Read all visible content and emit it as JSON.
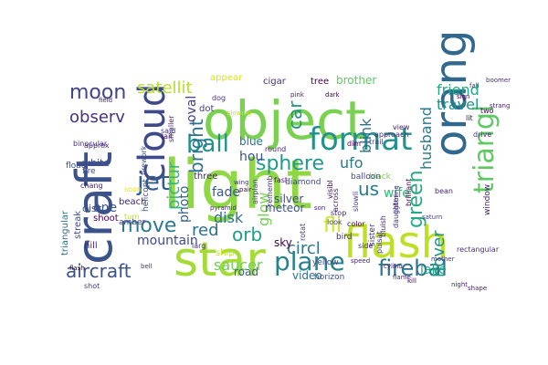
{
  "words": [
    {
      "text": "object",
      "color": "#7ad151"
    },
    {
      "text": "light",
      "color": "#8fd744"
    },
    {
      "text": "craft",
      "color": "#3b528b"
    },
    {
      "text": "flash",
      "color": "#bddf26"
    },
    {
      "text": "star",
      "color": "#a5db36"
    },
    {
      "text": "orang",
      "color": "#31688e"
    },
    {
      "text": "cloud",
      "color": "#3e4989"
    },
    {
      "text": "format",
      "color": "#21918c"
    },
    {
      "text": "plane",
      "color": "#26828e"
    },
    {
      "text": "triangl",
      "color": "#5ec962"
    },
    {
      "text": "firebal",
      "color": "#2c728e"
    },
    {
      "text": "green",
      "color": "#25ab82"
    },
    {
      "text": "ball",
      "color": "#21918c"
    },
    {
      "text": "move",
      "color": "#2a788e"
    },
    {
      "text": "sphere",
      "color": "#1e9b8a"
    },
    {
      "text": "moon",
      "color": "#414487"
    },
    {
      "text": "satellit",
      "color": "#b5de2b"
    },
    {
      "text": "bright",
      "color": "#2c728e"
    },
    {
      "text": "car",
      "color": "#21918c"
    },
    {
      "text": "jet",
      "color": "#365c8d"
    },
    {
      "text": "observ",
      "color": "#46337e"
    },
    {
      "text": "friend",
      "color": "#22a884"
    },
    {
      "text": "travel",
      "color": "#21918c"
    },
    {
      "text": "pictur",
      "color": "#35b779"
    },
    {
      "text": "husband",
      "color": "#2a788e"
    },
    {
      "text": "aircraft",
      "color": "#3b528b"
    },
    {
      "text": "hover",
      "color": "#21918c"
    },
    {
      "text": "orb",
      "color": "#1f9e89"
    },
    {
      "text": "circl",
      "color": "#2a788e"
    },
    {
      "text": "fli",
      "color": "#d2e21b"
    },
    {
      "text": "us",
      "color": "#2a788e"
    },
    {
      "text": "wife",
      "color": "#35b779"
    },
    {
      "text": "mountain",
      "color": "#3e4989"
    },
    {
      "text": "red",
      "color": "#2c728e"
    },
    {
      "text": "disk",
      "color": "#2c728e"
    },
    {
      "text": "ufo",
      "color": "#2a788e"
    },
    {
      "text": "blink",
      "color": "#2c728e"
    },
    {
      "text": "hou",
      "color": "#3b528b"
    },
    {
      "text": "glow",
      "color": "#75d054"
    },
    {
      "text": "photo",
      "color": "#355f8d"
    },
    {
      "text": "fade",
      "color": "#38588c"
    },
    {
      "text": "saucer",
      "color": "#6ece58"
    },
    {
      "text": "lake",
      "color": "#22a884"
    },
    {
      "text": "road",
      "color": "#355f8d"
    },
    {
      "text": "one",
      "color": "#3b528b"
    },
    {
      "text": "blue",
      "color": "#2c728e"
    },
    {
      "text": "oval",
      "color": "#433e85"
    },
    {
      "text": "brother",
      "color": "#5ec962"
    },
    {
      "text": "tree",
      "color": "#440154"
    },
    {
      "text": "cigar",
      "color": "#482878"
    },
    {
      "text": "appear",
      "color": "#d8e219"
    },
    {
      "text": "dot",
      "color": "#443983"
    },
    {
      "text": "video",
      "color": "#2c728e"
    },
    {
      "text": "sky",
      "color": "#440154"
    },
    {
      "text": "meteor",
      "color": "#3b528b"
    },
    {
      "text": "silver",
      "color": "#3e4989"
    },
    {
      "text": "three",
      "color": "#482475"
    },
    {
      "text": "white",
      "color": "#3e4989"
    },
    {
      "text": "disc",
      "color": "#3b528b"
    },
    {
      "text": "streak",
      "color": "#3e4989"
    },
    {
      "text": "triangular",
      "color": "#2c728e"
    },
    {
      "text": "shoot",
      "color": "#440154"
    },
    {
      "text": "hill",
      "color": "#482878"
    },
    {
      "text": "yellow",
      "color": "#3b528b"
    },
    {
      "text": "diamond",
      "color": "#3e4989"
    },
    {
      "text": "black",
      "color": "#7ad151"
    },
    {
      "text": "horizon",
      "color": "#3b528b"
    },
    {
      "text": "bird",
      "color": "#482878"
    },
    {
      "text": "window",
      "color": "#481b6d"
    },
    {
      "text": "sister",
      "color": "#482878"
    },
    {
      "text": "ship",
      "color": "#c8e020"
    },
    {
      "text": "float",
      "color": "#3e4989"
    },
    {
      "text": "fire",
      "color": "#3e4989"
    },
    {
      "text": "beach",
      "color": "#482475"
    },
    {
      "text": "amber",
      "color": "#443983"
    },
    {
      "text": "helicopt",
      "color": "#3b528b"
    },
    {
      "text": "balloon",
      "color": "#404688"
    },
    {
      "text": "fast",
      "color": "#481a6c"
    },
    {
      "text": "round",
      "color": "#482475"
    },
    {
      "text": "approx",
      "color": "#46327e"
    },
    {
      "text": "smaller",
      "color": "#482878"
    },
    {
      "text": "binocular",
      "color": "#46337e"
    },
    {
      "text": "said",
      "color": "#443983"
    },
    {
      "text": "tail",
      "color": "#481b6d"
    },
    {
      "text": "turn",
      "color": "#b5de2b"
    },
    {
      "text": "larg",
      "color": "#46327e"
    },
    {
      "text": "side",
      "color": "#482878"
    },
    {
      "text": "shot",
      "color": "#46337e"
    },
    {
      "text": "chang",
      "color": "#481a6c"
    },
    {
      "text": "stop",
      "color": "#482475"
    },
    {
      "text": "look",
      "color": "#433e85"
    },
    {
      "text": "soon",
      "color": "#e5e419"
    },
    {
      "text": "trail",
      "color": "#433e85"
    },
    {
      "text": "two",
      "color": "#440154"
    },
    {
      "text": "dog",
      "color": "#46327e"
    },
    {
      "text": "bean",
      "color": "#482475"
    },
    {
      "text": "pulsat",
      "color": "#46327e"
    },
    {
      "text": "rotat",
      "color": "#433e85"
    },
    {
      "text": "rememb",
      "color": "#46337e"
    },
    {
      "text": "visibl",
      "color": "#440154"
    },
    {
      "text": "bluish",
      "color": "#482878"
    },
    {
      "text": "firework",
      "color": "#3b528b"
    },
    {
      "text": "airplan",
      "color": "#404688"
    },
    {
      "text": "dim",
      "color": "#440154"
    },
    {
      "text": "across",
      "color": "#482475"
    },
    {
      "text": "slowli",
      "color": "#443983"
    },
    {
      "text": "view",
      "color": "#481b6d"
    },
    {
      "text": "color",
      "color": "#440154"
    },
    {
      "text": "drive",
      "color": "#46327e"
    },
    {
      "text": "approach",
      "color": "#482878"
    },
    {
      "text": "lit",
      "color": "#440154"
    },
    {
      "text": "rectangular",
      "color": "#46337e"
    },
    {
      "text": "cylind",
      "color": "#482878"
    },
    {
      "text": "shape",
      "color": "#481a6c"
    },
    {
      "text": "kill",
      "color": "#440154"
    },
    {
      "text": "fall",
      "color": "#443983"
    },
    {
      "text": "boomer",
      "color": "#46327e"
    },
    {
      "text": "strang",
      "color": "#481a6c"
    },
    {
      "text": "brilliant",
      "color": "#440154"
    },
    {
      "text": "daughter",
      "color": "#46337e"
    },
    {
      "text": "flame",
      "color": "#482475"
    },
    {
      "text": "glowing",
      "color": "#d8e219"
    },
    {
      "text": "lightning",
      "color": "#443983"
    },
    {
      "text": "sign",
      "color": "#440154"
    },
    {
      "text": "night",
      "color": "#482878"
    },
    {
      "text": "mother",
      "color": "#46327e"
    },
    {
      "text": "pink",
      "color": "#481b6d"
    },
    {
      "text": "pair",
      "color": "#440154"
    },
    {
      "text": "wing",
      "color": "#46327e"
    },
    {
      "text": "pyramid",
      "color": "#482878"
    },
    {
      "text": "saturn",
      "color": "#443983"
    },
    {
      "text": "son",
      "color": "#481a6c"
    },
    {
      "text": "dark",
      "color": "#440154"
    },
    {
      "text": "speed",
      "color": "#482475"
    },
    {
      "text": "bell",
      "color": "#46337e"
    },
    {
      "text": "field",
      "color": "#481b6d"
    },
    {
      "text": "flash",
      "color": "#440154"
    },
    {
      "text": "direct",
      "color": "#482878"
    }
  ]
}
